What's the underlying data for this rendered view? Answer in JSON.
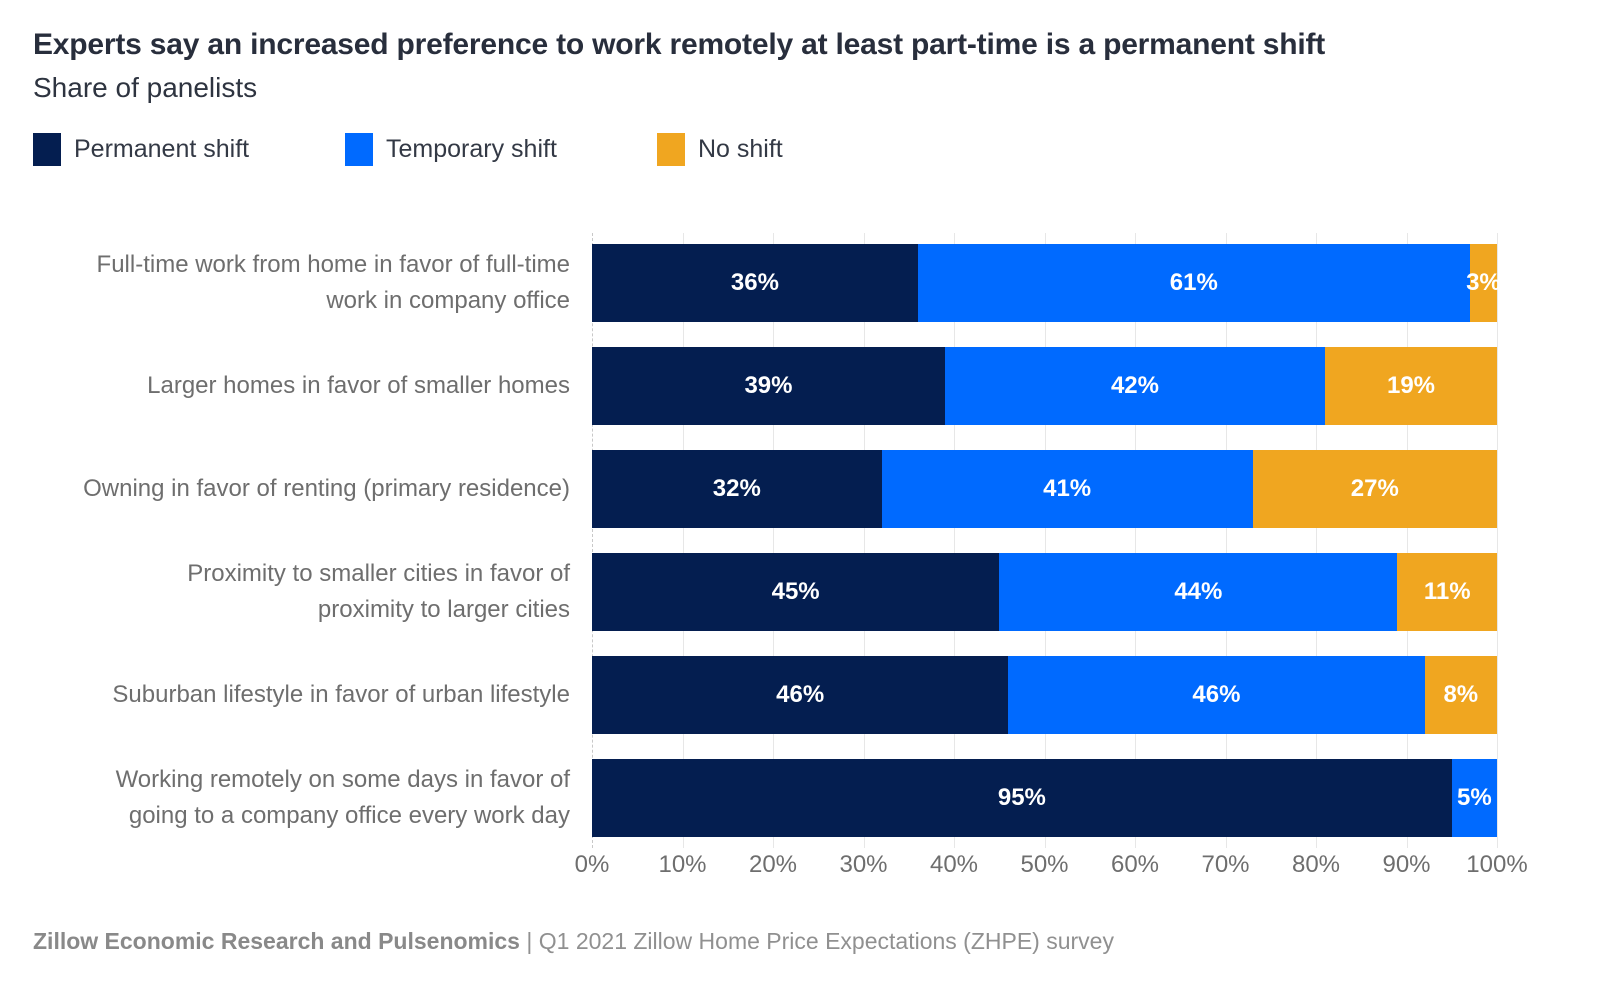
{
  "footer": {
    "source_bold": "Zillow Economic Research and Pulsenomics",
    "separator": " | ",
    "source_text": "Q1 2021 Zillow Home Price Expectations (ZHPE) survey"
  },
  "chart_data": {
    "type": "bar",
    "orientation": "horizontal",
    "stacked": true,
    "title": "Experts say an increased preference to work remotely at least part-time is a permanent shift",
    "subtitle": "Share of panelists",
    "categories": [
      "Full-time work from home in favor of full-time\nwork in company office",
      "Larger homes in favor of smaller homes",
      "Owning in favor of renting (primary residence)",
      "Proximity to smaller cities in favor of\nproximity to larger cities",
      "Suburban lifestyle in favor of urban lifestyle",
      "Working remotely on some days in favor of\ngoing to a company office every work day"
    ],
    "series": [
      {
        "name": "Permanent shift",
        "color": "#041E50",
        "values": [
          36,
          39,
          32,
          45,
          46,
          95
        ]
      },
      {
        "name": "Temporary shift",
        "color": "#006AFF",
        "values": [
          61,
          42,
          41,
          44,
          46,
          5
        ]
      },
      {
        "name": "No shift",
        "color": "#F0A620",
        "values": [
          3,
          19,
          27,
          11,
          8,
          0
        ]
      }
    ],
    "value_label_suffix": "%",
    "xlim": [
      0,
      100
    ],
    "x_ticks": [
      "0%",
      "10%",
      "20%",
      "30%",
      "40%",
      "50%",
      "60%",
      "70%",
      "80%",
      "90%",
      "100%"
    ],
    "grid": "vertical",
    "legend_position": "top"
  }
}
